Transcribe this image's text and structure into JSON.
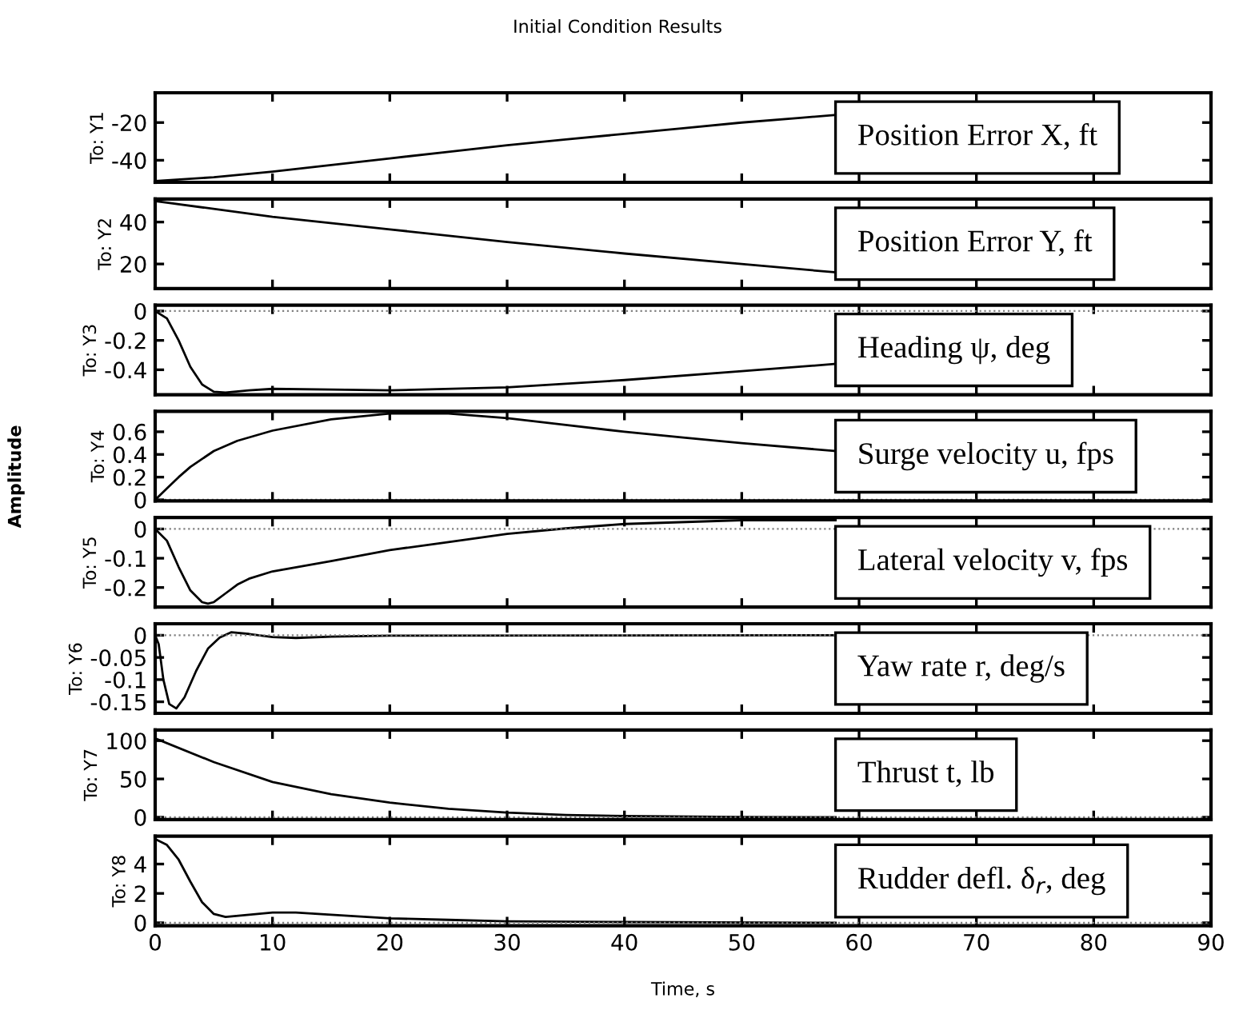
{
  "chart_data": [
    {
      "type": "line",
      "title": "Initial Condition Results",
      "ylabel": "To: Y1",
      "color": "#000000",
      "x": [
        0,
        5,
        10,
        15,
        20,
        25,
        30,
        35,
        40,
        45,
        50,
        55,
        58
      ],
      "values": [
        -51,
        -49,
        -46,
        -42.5,
        -39,
        -35.5,
        -32,
        -29,
        -26,
        -23,
        -20,
        -17.5,
        -16
      ],
      "xlim": [
        0,
        90
      ],
      "xticks": [
        0,
        10,
        20,
        30,
        40,
        50,
        60,
        70,
        80,
        90
      ],
      "ylim": [
        -51.7,
        -4.2
      ],
      "yticks": [
        -40,
        -20
      ],
      "tick_labels": "y",
      "annotations": [
        "Position Error X, ft",
        "Amplitude"
      ]
    },
    {
      "type": "line",
      "ylabel": "To: Y2",
      "color": "#000000",
      "x": [
        0,
        10,
        20,
        30,
        40,
        50,
        58
      ],
      "values": [
        50,
        42.5,
        36.5,
        30.5,
        25,
        20,
        16
      ],
      "xlim": [
        0,
        90
      ],
      "xticks": [
        0,
        10,
        20,
        30,
        40,
        50,
        60,
        70,
        80,
        90
      ],
      "ylim": [
        8.3,
        51
      ],
      "yticks": [
        20,
        40
      ],
      "tick_labels": "y",
      "annotations": [
        "Position Error Y, ft"
      ]
    },
    {
      "type": "line",
      "ylabel": "To: Y3",
      "color": "#000000",
      "x": [
        0,
        1,
        2,
        3,
        4,
        5,
        6,
        8,
        10,
        15,
        20,
        30,
        40,
        50,
        58
      ],
      "values": [
        0,
        -0.05,
        -0.2,
        -0.38,
        -0.5,
        -0.55,
        -0.555,
        -0.54,
        -0.53,
        -0.535,
        -0.54,
        -0.52,
        -0.47,
        -0.41,
        -0.36
      ],
      "xlim": [
        0,
        90
      ],
      "xticks": [
        0,
        10,
        20,
        30,
        40,
        50,
        60,
        70,
        80,
        90
      ],
      "ylim": [
        -0.57,
        0.04
      ],
      "yticks": [
        -0.4,
        -0.2,
        0
      ],
      "tick_labels": "y",
      "ref_lines": [
        {
          "axis": "y",
          "value": 0,
          "color": "#808080",
          "line_style": "dotted"
        }
      ],
      "annotations": [
        "Heading ψ, deg"
      ]
    },
    {
      "type": "line",
      "ylabel": "To: Y4",
      "color": "#000000",
      "x": [
        0,
        1,
        2,
        3,
        5,
        7,
        10,
        15,
        20,
        25,
        30,
        35,
        40,
        45,
        50,
        58
      ],
      "values": [
        0,
        0.1,
        0.2,
        0.29,
        0.43,
        0.52,
        0.61,
        0.71,
        0.76,
        0.76,
        0.72,
        0.66,
        0.6,
        0.55,
        0.5,
        0.43
      ],
      "xlim": [
        0,
        90
      ],
      "xticks": [
        0,
        10,
        20,
        30,
        40,
        50,
        60,
        70,
        80,
        90
      ],
      "ylim": [
        -0.01,
        0.78
      ],
      "yticks": [
        0,
        0.2,
        0.4,
        0.6
      ],
      "tick_labels": "y",
      "ref_lines": [
        {
          "axis": "y",
          "value": 0,
          "color": "#808080",
          "line_style": "dotted"
        }
      ],
      "annotations": [
        "Surge velocity u, fps"
      ]
    },
    {
      "type": "line",
      "ylabel": "To: Y5",
      "color": "#000000",
      "x": [
        0,
        1,
        2,
        3,
        4,
        4.5,
        5,
        6,
        7,
        8,
        10,
        15,
        20,
        25,
        30,
        35,
        40,
        50,
        58
      ],
      "values": [
        0,
        -0.04,
        -0.13,
        -0.21,
        -0.25,
        -0.255,
        -0.25,
        -0.22,
        -0.19,
        -0.17,
        -0.145,
        -0.11,
        -0.072,
        -0.045,
        -0.017,
        0.002,
        0.017,
        0.03,
        0.03
      ],
      "xlim": [
        0,
        90
      ],
      "xticks": [
        0,
        10,
        20,
        30,
        40,
        50,
        60,
        70,
        80,
        90
      ],
      "ylim": [
        -0.267,
        0.039
      ],
      "yticks": [
        -0.2,
        -0.1,
        0
      ],
      "tick_labels": "y",
      "ref_lines": [
        {
          "axis": "y",
          "value": 0,
          "color": "#808080",
          "line_style": "dotted"
        }
      ],
      "annotations": [
        "Lateral velocity v, fps"
      ]
    },
    {
      "type": "line",
      "ylabel": "To: Y6",
      "color": "#000000",
      "x": [
        0,
        0.3,
        0.7,
        1.2,
        1.8,
        2.5,
        3.5,
        4.5,
        5.5,
        6.5,
        8,
        10,
        12,
        15,
        20,
        58
      ],
      "values": [
        0,
        -0.02,
        -0.1,
        -0.155,
        -0.165,
        -0.14,
        -0.08,
        -0.03,
        -0.005,
        0.007,
        0.003,
        -0.004,
        -0.006,
        -0.003,
        -0.001,
        0
      ],
      "xlim": [
        0,
        90
      ],
      "xticks": [
        0,
        10,
        20,
        30,
        40,
        50,
        60,
        70,
        80,
        90
      ],
      "ylim": [
        -0.176,
        0.026
      ],
      "yticks": [
        -0.15,
        -0.1,
        -0.05,
        0
      ],
      "tick_labels": "y",
      "ref_lines": [
        {
          "axis": "y",
          "value": 0,
          "color": "#808080",
          "line_style": "dotted"
        }
      ],
      "annotations": [
        "Yaw rate r, deg/s"
      ]
    },
    {
      "type": "line",
      "ylabel": "To: Y7",
      "color": "#000000",
      "x": [
        0,
        5,
        10,
        15,
        20,
        25,
        30,
        35,
        40,
        50,
        58
      ],
      "values": [
        103,
        72,
        46,
        30,
        19,
        11,
        6,
        3,
        1.5,
        0.3,
        0
      ],
      "xlim": [
        0,
        90
      ],
      "xticks": [
        0,
        10,
        20,
        30,
        40,
        50,
        60,
        70,
        80,
        90
      ],
      "ylim": [
        -3,
        114
      ],
      "yticks": [
        0,
        50,
        100
      ],
      "tick_labels": "y",
      "ref_lines": [
        {
          "axis": "y",
          "value": 0,
          "color": "#808080",
          "line_style": "dotted"
        }
      ],
      "annotations": [
        "Thrust t, lb"
      ]
    },
    {
      "type": "line",
      "ylabel": "To: Y8",
      "xlabel": "Time, s",
      "color": "#000000",
      "x": [
        0,
        1,
        2,
        3,
        4,
        5,
        6,
        8,
        10,
        12,
        15,
        20,
        25,
        30,
        40,
        58
      ],
      "values": [
        5.7,
        5.3,
        4.3,
        2.8,
        1.4,
        0.6,
        0.4,
        0.55,
        0.7,
        0.7,
        0.55,
        0.3,
        0.2,
        0.1,
        0.05,
        0
      ],
      "xlim": [
        0,
        90
      ],
      "xticks": [
        0,
        10,
        20,
        30,
        40,
        50,
        60,
        70,
        80,
        90
      ],
      "ylim": [
        -0.2,
        5.9
      ],
      "yticks": [
        0,
        2,
        4
      ],
      "ref_lines": [
        {
          "axis": "y",
          "value": 0,
          "color": "#808080",
          "line_style": "dotted"
        }
      ],
      "annotations": [
        "Rudder defl. δ$_{r}$, deg"
      ]
    }
  ]
}
